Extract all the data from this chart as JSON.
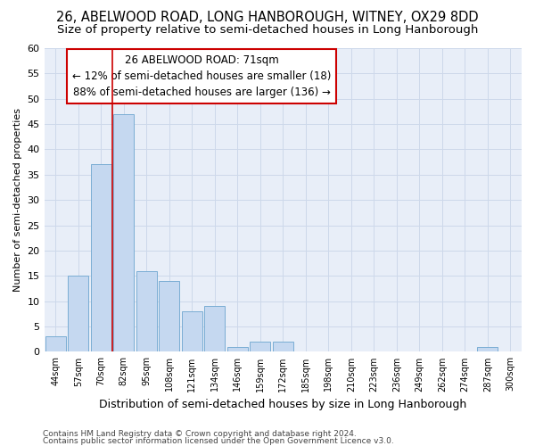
{
  "title": "26, ABELWOOD ROAD, LONG HANBOROUGH, WITNEY, OX29 8DD",
  "subtitle": "Size of property relative to semi-detached houses in Long Hanborough",
  "xlabel": "Distribution of semi-detached houses by size in Long Hanborough",
  "ylabel": "Number of semi-detached properties",
  "footer1": "Contains HM Land Registry data © Crown copyright and database right 2024.",
  "footer2": "Contains public sector information licensed under the Open Government Licence v3.0.",
  "annotation_title": "26 ABELWOOD ROAD: 71sqm",
  "annotation_line1": "← 12% of semi-detached houses are smaller (18)",
  "annotation_line2": "88% of semi-detached houses are larger (136) →",
  "bar_labels": [
    "44sqm",
    "57sqm",
    "70sqm",
    "82sqm",
    "95sqm",
    "108sqm",
    "121sqm",
    "134sqm",
    "146sqm",
    "159sqm",
    "172sqm",
    "185sqm",
    "198sqm",
    "210sqm",
    "223sqm",
    "236sqm",
    "249sqm",
    "262sqm",
    "274sqm",
    "287sqm",
    "300sqm"
  ],
  "bar_values": [
    3,
    15,
    37,
    47,
    16,
    14,
    8,
    9,
    1,
    2,
    2,
    0,
    0,
    0,
    0,
    0,
    0,
    0,
    0,
    1,
    0
  ],
  "bar_color": "#c5d8f0",
  "bar_edge_color": "#7aadd4",
  "vline_color": "#cc0000",
  "vline_x": 2.5,
  "ylim": [
    0,
    60
  ],
  "yticks": [
    0,
    5,
    10,
    15,
    20,
    25,
    30,
    35,
    40,
    45,
    50,
    55,
    60
  ],
  "grid_color": "#cdd8ea",
  "bg_color": "#e8eef8",
  "title_fontsize": 10.5,
  "subtitle_fontsize": 9.5,
  "annotation_box_color": "#ffffff",
  "annotation_box_edge": "#cc0000",
  "xlabel_fontsize": 9,
  "ylabel_fontsize": 8,
  "footer_fontsize": 6.5
}
